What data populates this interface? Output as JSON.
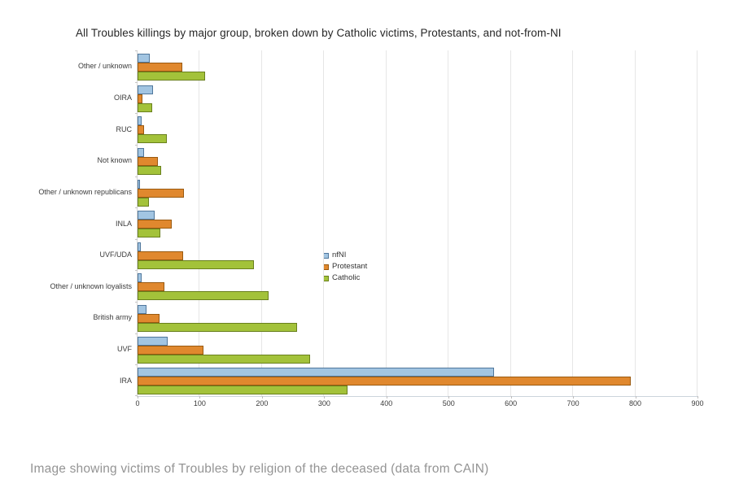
{
  "page": {
    "title": "All Troubles killings by major group, broken down by Catholic victims, Protestants, and not-from-NI",
    "caption": "Image showing victims of Troubles by religion of the deceased (data from CAIN)"
  },
  "chart_data": {
    "type": "bar",
    "orientation": "horizontal",
    "title": "All Troubles killings by major group, broken down by Catholic victims, Protestants, and not-from-NI",
    "categories": [
      "Other / unknown",
      "OIRA",
      "RUC",
      "Not known",
      "Other / unknown republicans",
      "INLA",
      "UVF/UDA",
      "Other / unknown loyalists",
      "British army",
      "UVF",
      "IRA"
    ],
    "series": [
      {
        "name": "nfNI",
        "fill": "#a2c5e2",
        "border": "#50779c",
        "values": [
          20,
          25,
          6,
          11,
          4,
          27,
          5,
          6,
          15,
          48,
          573
        ]
      },
      {
        "name": "Protestant",
        "fill": "#e0882e",
        "border": "#9a5a10",
        "values": [
          72,
          8,
          11,
          33,
          75,
          55,
          73,
          43,
          35,
          106,
          793
        ]
      },
      {
        "name": "Catholic",
        "fill": "#a3c23a",
        "border": "#69801d",
        "values": [
          109,
          23,
          47,
          38,
          18,
          37,
          187,
          211,
          256,
          277,
          338
        ]
      }
    ],
    "xlim": [
      0,
      900
    ],
    "x_ticks": [
      0,
      100,
      200,
      300,
      400,
      500,
      600,
      700,
      800,
      900
    ],
    "grid": true,
    "legend_position": "center-right",
    "legend_entries": [
      "nfNI",
      "Protestant",
      "Catholic"
    ]
  }
}
